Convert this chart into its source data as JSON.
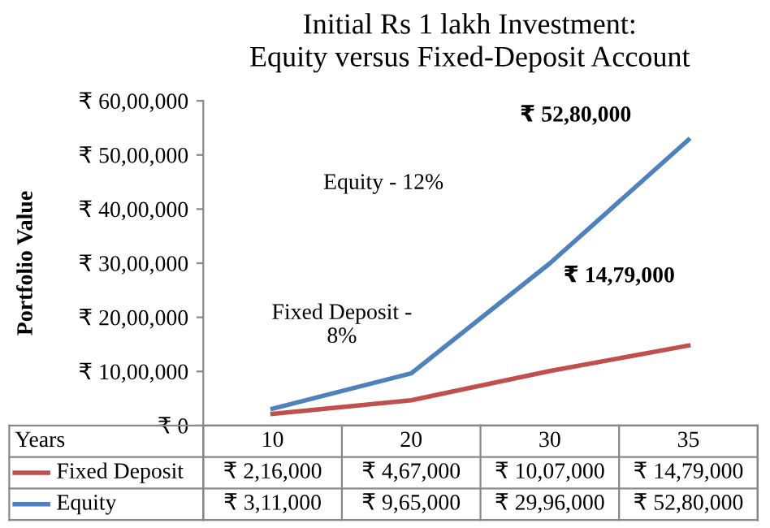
{
  "chart_data": {
    "type": "line",
    "title": "Initial Rs 1 lakh Investment:\nEquity versus Fixed-Deposit Account",
    "xlabel": "Years",
    "ylabel": "Portfolio Value",
    "categories": [
      "10",
      "20",
      "30",
      "35"
    ],
    "series": [
      {
        "name": "Fixed Deposit",
        "color": "#c0504d",
        "values": [
          216000,
          467000,
          1007000,
          1479000
        ],
        "value_labels": [
          "₹ 2,16,000",
          "₹ 4,67,000",
          "₹ 10,07,000",
          "₹ 14,79,000"
        ]
      },
      {
        "name": "Equity",
        "color": "#4f81bd",
        "values": [
          311000,
          965000,
          2996000,
          5280000
        ],
        "value_labels": [
          "₹ 3,11,000",
          "₹ 9,65,000",
          "₹ 29,96,000",
          "₹ 52,80,000"
        ]
      }
    ],
    "ylim": [
      0,
      6000000
    ],
    "yticks": [
      {
        "value": 0,
        "label": "₹ 0"
      },
      {
        "value": 1000000,
        "label": "₹ 10,00,000"
      },
      {
        "value": 2000000,
        "label": "₹ 20,00,000"
      },
      {
        "value": 3000000,
        "label": "₹ 30,00,000"
      },
      {
        "value": 4000000,
        "label": "₹ 40,00,000"
      },
      {
        "value": 5000000,
        "label": "₹ 50,00,000"
      },
      {
        "value": 6000000,
        "label": "₹ 60,00,000"
      }
    ],
    "annotations": [
      {
        "text": "₹ 52,80,000",
        "x": "35",
        "y": 5280000
      },
      "₹ 14,79,000",
      "Equity - 12%",
      "Fixed Deposit -\n8%"
    ],
    "legend": "bottom left",
    "grid": false,
    "marker": "none",
    "line_style": "solid"
  }
}
